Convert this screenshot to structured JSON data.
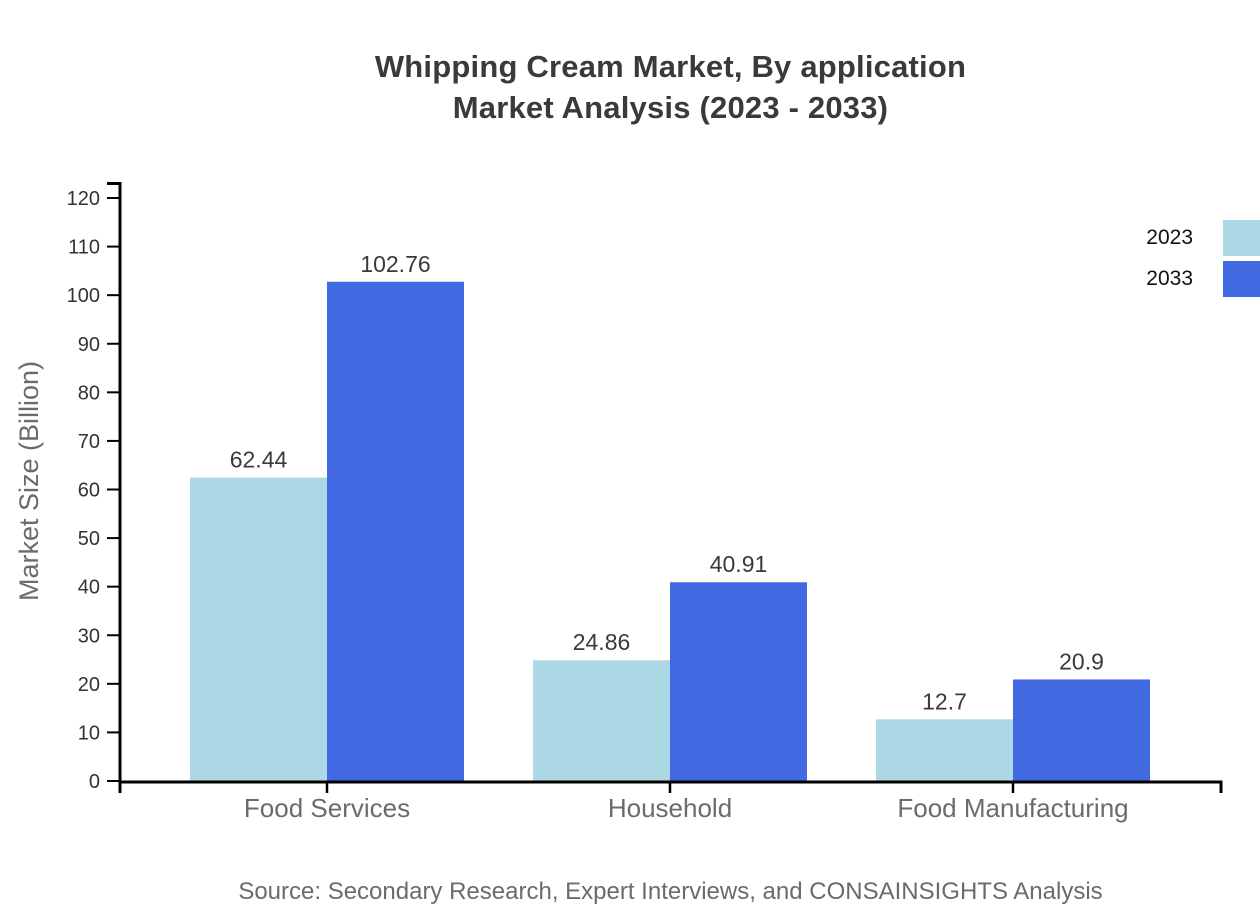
{
  "page": {
    "background": "#ffffff"
  },
  "title": {
    "line1": "Whipping Cream Market, By application",
    "line2": "Market Analysis (2023 - 2033)"
  },
  "legend": {
    "position": "top-right",
    "items": [
      {
        "label": "2023",
        "color": "#ADD8E6"
      },
      {
        "label": "2033",
        "color": "#4169E1"
      }
    ]
  },
  "source": {
    "text": "Source: Secondary Research, Expert Interviews, and CONSAINSIGHTS Analysis"
  },
  "chart_data": {
    "type": "bar",
    "title": "Whipping Cream Market, By application Market Analysis (2023 - 2033)",
    "categories": [
      "Food Services",
      "Household",
      "Food Manufacturing"
    ],
    "series": [
      {
        "name": "2023",
        "color": "#ADD8E6",
        "values": [
          62.44,
          24.86,
          12.7
        ]
      },
      {
        "name": "2033",
        "color": "#4169E1",
        "values": [
          102.76,
          40.91,
          20.9
        ]
      }
    ],
    "value_labels": [
      [
        "62.44",
        "24.86",
        "12.7"
      ],
      [
        "102.76",
        "40.91",
        "20.9"
      ]
    ],
    "xlabel": "",
    "ylabel": "Market Size (Billion)",
    "ylim": [
      0,
      120
    ],
    "yticks": [
      0,
      10,
      20,
      30,
      40,
      50,
      60,
      70,
      80,
      90,
      100,
      110,
      120
    ],
    "grid": false,
    "legend_position": "top-right",
    "axis_color": "#000000",
    "tick_label_color": "#333333",
    "value_label_color": "#3a3a3a",
    "category_label_color": "#6b6b6b",
    "axis_title_color": "#6b6b6b"
  }
}
